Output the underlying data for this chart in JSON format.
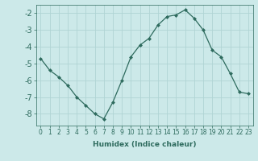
{
  "x": [
    0,
    1,
    2,
    3,
    4,
    5,
    6,
    7,
    8,
    9,
    10,
    11,
    12,
    13,
    14,
    15,
    16,
    17,
    18,
    19,
    20,
    21,
    22,
    23
  ],
  "y": [
    -4.7,
    -5.4,
    -5.8,
    -6.3,
    -7.0,
    -7.5,
    -8.0,
    -8.3,
    -7.3,
    -6.0,
    -4.6,
    -3.9,
    -3.5,
    -2.7,
    -2.2,
    -2.1,
    -1.8,
    -2.3,
    -3.0,
    -4.2,
    -4.6,
    -5.6,
    -6.7,
    -6.8
  ],
  "line_color": "#2e6b5e",
  "marker": "D",
  "marker_size": 2.0,
  "bg_color": "#cce9e9",
  "grid_color": "#b0d4d4",
  "xlabel": "Humidex (Indice chaleur)",
  "ylim": [
    -8.7,
    -1.5
  ],
  "xlim": [
    -0.5,
    23.5
  ],
  "yticks": [
    -8,
    -7,
    -6,
    -5,
    -4,
    -3,
    -2
  ],
  "xticks": [
    0,
    1,
    2,
    3,
    4,
    5,
    6,
    7,
    8,
    9,
    10,
    11,
    12,
    13,
    14,
    15,
    16,
    17,
    18,
    19,
    20,
    21,
    22,
    23
  ],
  "xtick_labels": [
    "0",
    "1",
    "2",
    "3",
    "4",
    "5",
    "6",
    "7",
    "8",
    "9",
    "10",
    "11",
    "12",
    "13",
    "14",
    "15",
    "16",
    "17",
    "18",
    "19",
    "20",
    "21",
    "22",
    "23"
  ],
  "tick_color": "#2e6b5e",
  "font_color": "#2e6b5e",
  "xlabel_fontsize": 6.5,
  "ytick_fontsize": 7,
  "xtick_fontsize": 5.5
}
